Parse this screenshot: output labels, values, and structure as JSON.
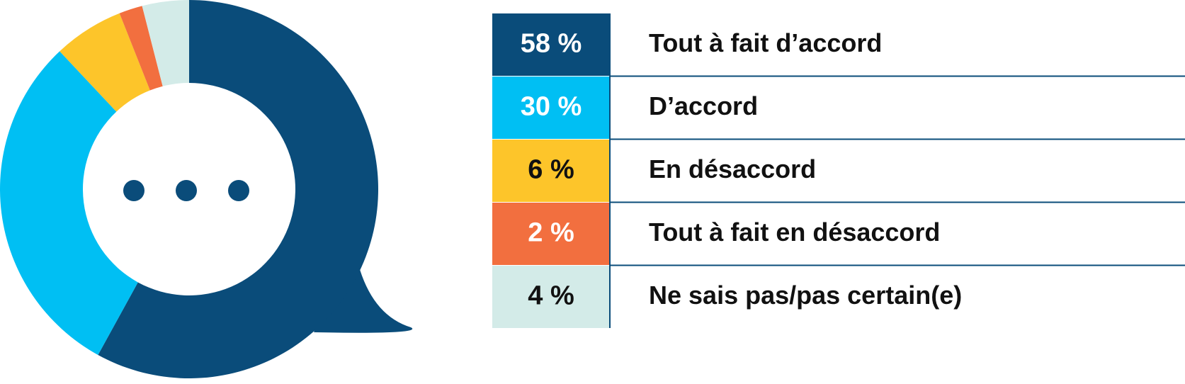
{
  "chart_data": {
    "type": "pie",
    "donut": true,
    "categories": [
      "Tout à fait d’accord",
      "D’accord",
      "En désaccord",
      "Tout à fait en désaccord",
      "Ne sais pas/pas certain(e)"
    ],
    "values": [
      58,
      30,
      6,
      2,
      4
    ],
    "value_labels": [
      "58 %",
      "30 %",
      "6 %",
      "2 %",
      "4 %"
    ],
    "colors": [
      "#0a4c7a",
      "#00bff3",
      "#fdc52a",
      "#f26f3f",
      "#d3ebe8"
    ]
  }
}
